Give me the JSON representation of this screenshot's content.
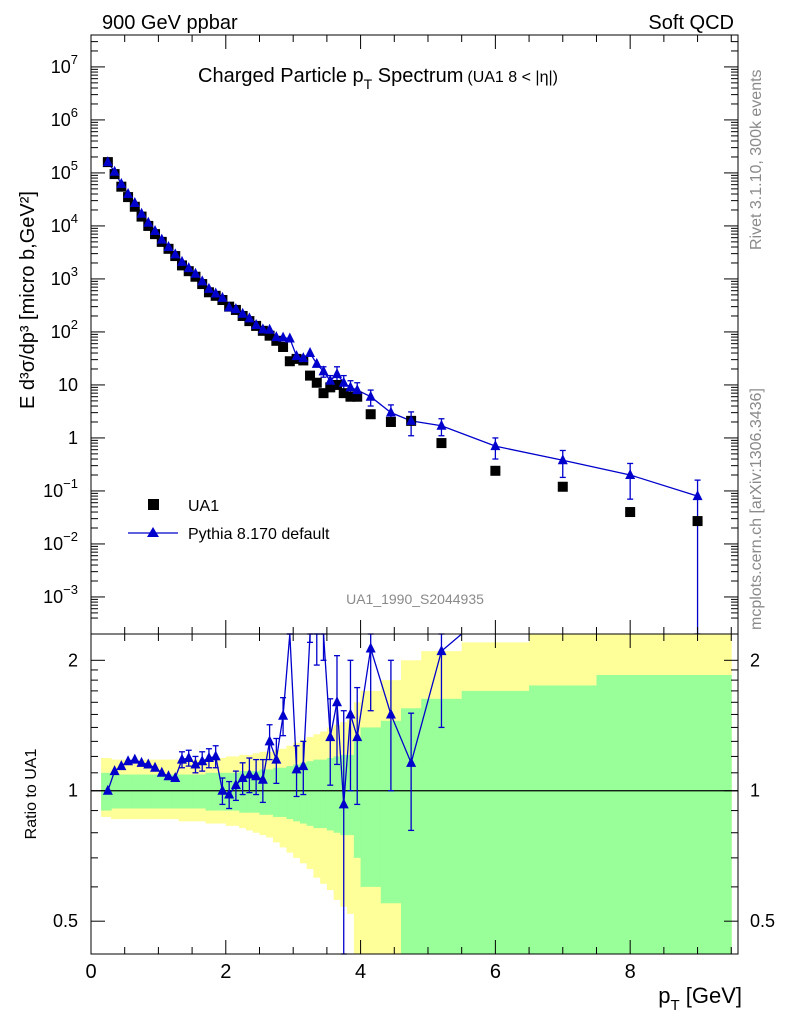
{
  "header": {
    "left": "900 GeV ppbar",
    "right": "Soft QCD"
  },
  "side_labels": {
    "rivet": "Rivet 3.1.10,  300k events",
    "mcplots": "mcplots.cern.ch [arXiv:1306.3436]"
  },
  "colors": {
    "data": "#000000",
    "mc": "#0000cc",
    "band_inner": "#99ff99",
    "band_outer": "#ffff99"
  },
  "chart_data": [
    {
      "type": "scatter",
      "title_main": "Charged Particle p",
      "title_sub": "T",
      "title_tail": " Spectrum",
      "title_extra": "(UA1   8 < |η|)",
      "analysis_id": "UA1_1990_S2044935",
      "ylabel": "E d³σ/dp³ [micro b,GeV²]",
      "yscale": "log",
      "xlim": [
        0,
        9.6
      ],
      "ylim": [
        0.0002,
        40000000
      ],
      "y_ticks": [
        {
          "v": 0.001,
          "m": "10",
          "e": "−3"
        },
        {
          "v": 0.01,
          "m": "10",
          "e": "−2"
        },
        {
          "v": 0.1,
          "m": "10",
          "e": "−1"
        },
        {
          "v": 1,
          "m": "1",
          "e": ""
        },
        {
          "v": 10,
          "m": "10",
          "e": ""
        },
        {
          "v": 100,
          "m": "10",
          "e": "2"
        },
        {
          "v": 1000,
          "m": "10",
          "e": "3"
        },
        {
          "v": 10000,
          "m": "10",
          "e": "4"
        },
        {
          "v": 100000,
          "m": "10",
          "e": "5"
        },
        {
          "v": 1000000,
          "m": "10",
          "e": "6"
        },
        {
          "v": 10000000,
          "m": "10",
          "e": "7"
        }
      ],
      "legend": [
        {
          "label": "UA1",
          "marker": "square"
        },
        {
          "label": "Pythia 8.170 default",
          "marker": "triangle"
        }
      ],
      "series": [
        {
          "name": "UA1",
          "x": [
            0.25,
            0.35,
            0.45,
            0.55,
            0.65,
            0.75,
            0.85,
            0.95,
            1.05,
            1.15,
            1.25,
            1.35,
            1.45,
            1.55,
            1.65,
            1.75,
            1.85,
            1.95,
            2.05,
            2.15,
            2.25,
            2.35,
            2.45,
            2.55,
            2.65,
            2.75,
            2.85,
            2.95,
            3.05,
            3.15,
            3.25,
            3.35,
            3.45,
            3.55,
            3.65,
            3.75,
            3.85,
            3.95,
            4.15,
            4.45,
            4.75,
            5.2,
            6.0,
            7.0,
            8.0,
            9.0
          ],
          "y": [
            160000,
            95000,
            55000,
            35000,
            23000,
            15000,
            10000,
            7000,
            5000,
            3700,
            2700,
            1800,
            1400,
            1100,
            800,
            560,
            480,
            400,
            300,
            260,
            200,
            160,
            130,
            105,
            85,
            68,
            52,
            28,
            31,
            29,
            15,
            11,
            7,
            9,
            10,
            7,
            6,
            6,
            2.8,
            2,
            2.1,
            0.8,
            0.24,
            0.12,
            0.04,
            0.027
          ]
        },
        {
          "name": "Pythia 8.170 default",
          "x": [
            0.25,
            0.35,
            0.45,
            0.55,
            0.65,
            0.75,
            0.85,
            0.95,
            1.05,
            1.15,
            1.25,
            1.35,
            1.45,
            1.55,
            1.65,
            1.75,
            1.85,
            1.95,
            2.05,
            2.15,
            2.25,
            2.35,
            2.45,
            2.55,
            2.65,
            2.75,
            2.85,
            2.95,
            3.05,
            3.15,
            3.25,
            3.35,
            3.45,
            3.55,
            3.65,
            3.75,
            3.85,
            3.95,
            4.15,
            4.45,
            4.75,
            5.2,
            6.0,
            7.0,
            8.0,
            9.0
          ],
          "y": [
            160000,
            105000,
            62000,
            40000,
            27000,
            17000,
            11500,
            8000,
            5500,
            4000,
            2900,
            2100,
            1600,
            1250,
            900,
            650,
            530,
            440,
            290,
            270,
            220,
            180,
            135,
            112,
            110,
            80,
            78,
            75,
            35,
            32,
            40,
            25,
            18,
            12,
            16,
            11,
            9,
            8,
            6,
            3,
            2.1,
            1.7,
            0.7,
            0.38,
            0.2,
            0.08
          ],
          "yerr": [
            0,
            0,
            0,
            0,
            0,
            0,
            0,
            0,
            0,
            0,
            0,
            0,
            0,
            0,
            0,
            0,
            0,
            0,
            0,
            0,
            0,
            0,
            0,
            0,
            0,
            0,
            0,
            0,
            0,
            0,
            0,
            0,
            4,
            3,
            6,
            4,
            3,
            3,
            2,
            1.2,
            1,
            0.6,
            0.3,
            0.2,
            0.13,
            0.08
          ]
        }
      ]
    },
    {
      "type": "line",
      "xlabel_main": "p",
      "xlabel_sub": "T",
      "xlabel_tail": " [GeV]",
      "ylabel": "Ratio to UA1",
      "yscale": "log",
      "xlim": [
        0,
        9.6
      ],
      "ylim": [
        0.42,
        2.3
      ],
      "x_ticks": [
        0,
        2,
        4,
        6,
        8
      ],
      "y_ticks": [
        0.5,
        1,
        2
      ],
      "reference": 1,
      "band_edges": [
        0.15,
        0.3,
        0.4,
        0.5,
        0.6,
        0.7,
        0.8,
        0.9,
        1.0,
        1.1,
        1.2,
        1.3,
        1.4,
        1.5,
        1.6,
        1.7,
        1.8,
        1.9,
        2.0,
        2.1,
        2.2,
        2.3,
        2.4,
        2.5,
        2.6,
        2.7,
        2.8,
        2.9,
        3.0,
        3.1,
        3.2,
        3.3,
        3.4,
        3.5,
        3.6,
        3.7,
        3.8,
        3.9,
        4.0,
        4.3,
        4.6,
        4.9,
        5.5,
        6.5,
        7.5,
        9.5
      ],
      "band_inner_up": [
        1.1,
        1.09,
        1.09,
        1.09,
        1.09,
        1.09,
        1.09,
        1.09,
        1.09,
        1.09,
        1.09,
        1.09,
        1.09,
        1.09,
        1.09,
        1.1,
        1.1,
        1.1,
        1.1,
        1.1,
        1.11,
        1.11,
        1.11,
        1.12,
        1.12,
        1.13,
        1.13,
        1.14,
        1.15,
        1.16,
        1.17,
        1.18,
        1.18,
        1.19,
        1.2,
        1.21,
        1.21,
        1.3,
        1.4,
        1.45,
        1.55,
        1.63,
        1.7,
        1.75,
        1.85
      ],
      "band_inner_low": [
        0.9,
        0.91,
        0.91,
        0.91,
        0.91,
        0.91,
        0.91,
        0.91,
        0.91,
        0.91,
        0.91,
        0.91,
        0.91,
        0.91,
        0.91,
        0.9,
        0.9,
        0.9,
        0.9,
        0.9,
        0.89,
        0.89,
        0.89,
        0.88,
        0.88,
        0.87,
        0.87,
        0.86,
        0.85,
        0.84,
        0.83,
        0.82,
        0.82,
        0.81,
        0.8,
        0.79,
        0.79,
        0.7,
        0.6,
        0.55,
        0.42,
        0.42,
        0.42,
        0.42,
        0.42
      ],
      "band_outer_up": [
        1.19,
        1.18,
        1.18,
        1.18,
        1.18,
        1.18,
        1.18,
        1.18,
        1.18,
        1.18,
        1.18,
        1.18,
        1.18,
        1.18,
        1.18,
        1.19,
        1.19,
        1.19,
        1.2,
        1.2,
        1.21,
        1.21,
        1.22,
        1.23,
        1.23,
        1.24,
        1.25,
        1.27,
        1.29,
        1.31,
        1.33,
        1.35,
        1.37,
        1.4,
        1.42,
        1.44,
        1.46,
        1.6,
        1.7,
        1.8,
        2.0,
        2.1,
        2.2,
        2.3,
        2.3
      ],
      "band_outer_low": [
        0.87,
        0.86,
        0.86,
        0.86,
        0.86,
        0.86,
        0.86,
        0.86,
        0.86,
        0.86,
        0.86,
        0.85,
        0.85,
        0.85,
        0.85,
        0.84,
        0.84,
        0.84,
        0.83,
        0.83,
        0.82,
        0.81,
        0.8,
        0.79,
        0.78,
        0.76,
        0.74,
        0.72,
        0.7,
        0.68,
        0.66,
        0.63,
        0.61,
        0.59,
        0.56,
        0.54,
        0.52,
        0.42,
        0.42,
        0.42,
        0.42,
        0.42,
        0.42,
        0.42,
        0.42
      ],
      "series": [
        {
          "name": "Pythia 8.170 / UA1",
          "x": [
            0.25,
            0.35,
            0.45,
            0.55,
            0.65,
            0.75,
            0.85,
            0.95,
            1.05,
            1.15,
            1.25,
            1.35,
            1.45,
            1.55,
            1.65,
            1.75,
            1.85,
            1.95,
            2.05,
            2.15,
            2.25,
            2.35,
            2.45,
            2.55,
            2.65,
            2.75,
            2.85,
            2.95,
            3.05,
            3.15,
            3.25,
            3.35,
            3.45,
            3.55,
            3.65,
            3.75,
            3.85,
            3.95,
            4.15,
            4.45,
            4.75,
            5.2,
            5.5
          ],
          "y": [
            1.0,
            1.11,
            1.14,
            1.17,
            1.18,
            1.16,
            1.15,
            1.13,
            1.1,
            1.08,
            1.07,
            1.18,
            1.19,
            1.15,
            1.17,
            1.19,
            1.2,
            1.0,
            0.98,
            1.03,
            1.07,
            1.09,
            1.08,
            1.06,
            1.3,
            1.18,
            1.49,
            2.71,
            1.12,
            1.14,
            2.6,
            2.3,
            2.6,
            1.33,
            1.6,
            0.93,
            1.5,
            1.33,
            2.13,
            1.5,
            1.16,
            2.1,
            2.3
          ],
          "yerr": [
            0,
            0,
            0,
            0,
            0,
            0,
            0,
            0,
            0,
            0,
            0,
            0.05,
            0.05,
            0.05,
            0.06,
            0.06,
            0.07,
            0.07,
            0.07,
            0.08,
            0.09,
            0.1,
            0.1,
            0.12,
            0.12,
            0.14,
            0.15,
            0.3,
            0.15,
            0.16,
            0.4,
            0.35,
            0.6,
            0.3,
            0.45,
            0.6,
            0.5,
            0.4,
            0.6,
            0.5,
            0.35,
            0.7,
            0
          ]
        }
      ]
    }
  ]
}
